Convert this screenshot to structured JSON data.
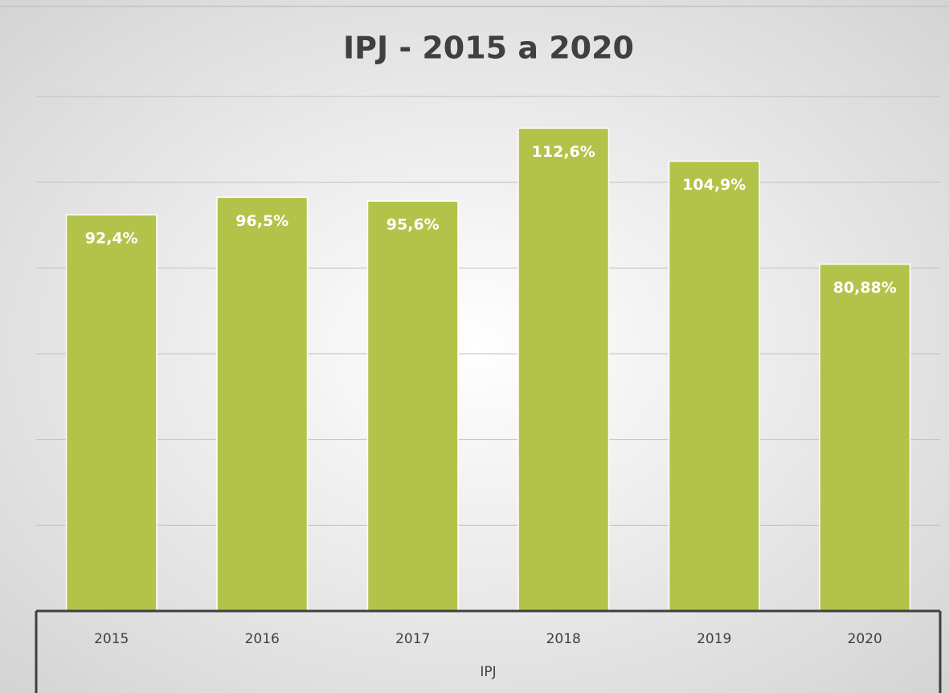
{
  "chart_data": {
    "type": "bar",
    "title": "IPJ - 2015  a 2020",
    "categories": [
      "2015",
      "2016",
      "2017",
      "2018",
      "2019",
      "2020"
    ],
    "values": [
      92.4,
      96.5,
      95.6,
      112.6,
      104.9,
      80.88
    ],
    "value_labels": [
      "92,4%",
      "96,5%",
      "95,6%",
      "112,6%",
      "104,9%",
      "80,88%"
    ],
    "x_label": "IPJ",
    "color": "#b3c34a",
    "ylim": [
      0,
      120
    ],
    "yticks": [
      0,
      20,
      40,
      60,
      80,
      100,
      120
    ],
    "grid": true
  }
}
